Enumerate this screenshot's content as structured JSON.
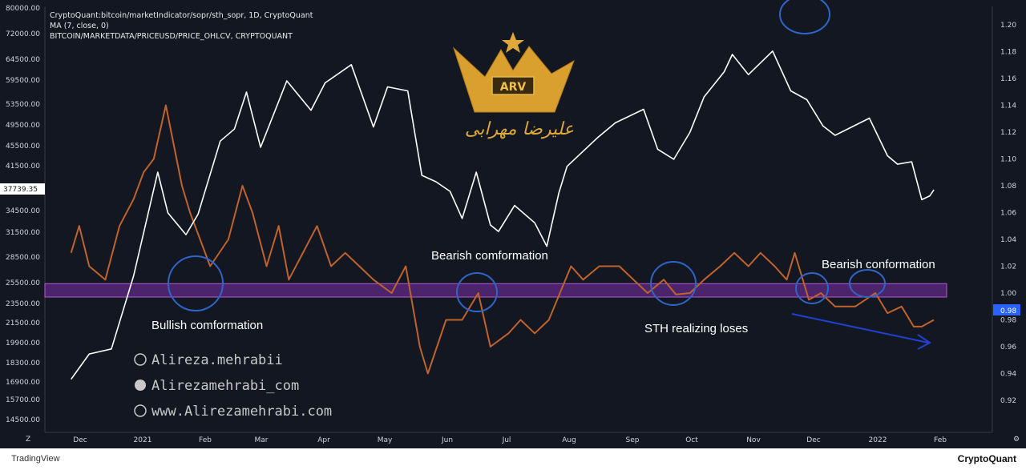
{
  "legend": {
    "line1": "CryptoQuant:bitcoin/marketIndicator/sopr/sth_sopr, 1D, CryptoQuant",
    "line2": "MA (7, close, 0)",
    "line3": "BITCOIN/MARKETDATA/PRICEUSD/PRICE_OHLCV, CRYPTOQUANT"
  },
  "colors": {
    "background": "#131722",
    "price_line": "#ffffff",
    "sopr_line": "#c0622b",
    "band_fill": "#7b2fa8",
    "circle": "#2f64c8",
    "arrow": "#2040d0",
    "price_tag": "#ffffff",
    "sopr_tag": "#2962ff"
  },
  "price_tag": "37739.35",
  "sopr_tag": "0.98",
  "annotations": {
    "bearish_1": "Bearish comformation",
    "bearish_2": "Bearish conformation",
    "bullish": "Bullish comformation",
    "sth": "STH realizing loses"
  },
  "watermark": {
    "instagram": "Alireza.mehrabii",
    "telegram": "Alirezamehrabi_com",
    "web": "www.Alirezamehrabi.com",
    "logo_text": "ARV",
    "logo_signature": "علیرضا مهرابی"
  },
  "footer": {
    "tradingview": "TradingView",
    "cryptoquant": "CryptoQuant"
  },
  "chart_data": {
    "type": "line",
    "title": "CryptoQuant:bitcoin/marketIndicator/sopr/sth_sopr, 1D, CryptoQuant",
    "x_ticks": [
      "Dec",
      "2021",
      "Feb",
      "Mar",
      "Apr",
      "May",
      "Jun",
      "Jul",
      "Aug",
      "Sep",
      "Oct",
      "Nov",
      "Dec",
      "2022",
      "Feb"
    ],
    "left_axis": {
      "label": "",
      "ticks": [
        "80000.00",
        "72000.00",
        "64500.00",
        "59500.00",
        "53500.00",
        "49500.00",
        "45500.00",
        "41500.00",
        "34500.00",
        "31500.00",
        "28500.00",
        "25500.00",
        "23500.00",
        "21500.00",
        "19900.00",
        "18300.00",
        "16900.00",
        "15700.00",
        "14500.00"
      ]
    },
    "right_axis": {
      "label": "",
      "ticks": [
        "1.20",
        "1.18",
        "1.16",
        "1.14",
        "1.12",
        "1.10",
        "1.08",
        "1.06",
        "1.04",
        "1.02",
        "1.00",
        "0.98",
        "0.96",
        "0.94",
        "0.92"
      ],
      "ylim": [
        0.91,
        1.21
      ]
    },
    "series": [
      {
        "name": "BITCOIN/MARKETDATA/PRICEUSD/PRICE_OHLCV, CRYPTOQUANT",
        "axis": "left",
        "x": [
          "2020-11-26",
          "2020-12-05",
          "2020-12-16",
          "2020-12-27",
          "2021-01-08",
          "2021-01-13",
          "2021-01-22",
          "2021-01-28",
          "2021-02-08",
          "2021-02-15",
          "2021-02-21",
          "2021-02-28",
          "2021-03-13",
          "2021-03-25",
          "2021-04-01",
          "2021-04-14",
          "2021-04-25",
          "2021-05-02",
          "2021-05-12",
          "2021-05-19",
          "2021-05-26",
          "2021-06-02",
          "2021-06-08",
          "2021-06-15",
          "2021-06-22",
          "2021-06-26",
          "2021-07-04",
          "2021-07-14",
          "2021-07-20",
          "2021-07-26",
          "2021-07-30",
          "2021-08-14",
          "2021-08-23",
          "2021-09-06",
          "2021-09-13",
          "2021-09-21",
          "2021-09-29",
          "2021-10-06",
          "2021-10-16",
          "2021-10-20",
          "2021-10-28",
          "2021-11-09",
          "2021-11-18",
          "2021-11-26",
          "2021-12-04",
          "2021-12-10",
          "2021-12-27",
          "2022-01-05",
          "2022-01-10",
          "2022-01-17",
          "2022-01-22",
          "2022-01-26",
          "2022-01-28"
        ],
        "y": [
          17100,
          19000,
          19400,
          26300,
          40500,
          34200,
          31200,
          34000,
          46400,
          48700,
          56500,
          45200,
          59300,
          52300,
          58800,
          63200,
          49100,
          57800,
          56800,
          40000,
          39000,
          37500,
          33400,
          40500,
          32500,
          31600,
          35300,
          32800,
          29800,
          37300,
          41400,
          47000,
          49900,
          52500,
          44800,
          42800,
          48100,
          55300,
          61500,
          65900,
          60800,
          66900,
          56800,
          54600,
          49300,
          47500,
          50800,
          43500,
          41800,
          42300,
          36200,
          36800,
          37739.35
        ]
      },
      {
        "name": "MA (7, close, 0)",
        "axis": "right",
        "x": [
          "2020-11-26",
          "2020-11-30",
          "2020-12-05",
          "2020-12-13",
          "2020-12-20",
          "2020-12-27",
          "2021-01-01",
          "2021-01-06",
          "2021-01-12",
          "2021-01-20",
          "2021-01-24",
          "2021-02-03",
          "2021-02-12",
          "2021-02-19",
          "2021-02-24",
          "2021-03-03",
          "2021-03-09",
          "2021-03-14",
          "2021-03-21",
          "2021-03-28",
          "2021-04-04",
          "2021-04-11",
          "2021-04-18",
          "2021-04-25",
          "2021-05-04",
          "2021-05-11",
          "2021-05-18",
          "2021-05-22",
          "2021-05-31",
          "2021-06-08",
          "2021-06-16",
          "2021-06-22",
          "2021-07-01",
          "2021-07-07",
          "2021-07-14",
          "2021-07-21",
          "2021-08-01",
          "2021-08-07",
          "2021-08-15",
          "2021-08-25",
          "2021-09-01",
          "2021-09-08",
          "2021-09-16",
          "2021-09-22",
          "2021-09-29",
          "2021-10-06",
          "2021-10-14",
          "2021-10-21",
          "2021-10-28",
          "2021-11-03",
          "2021-11-10",
          "2021-11-16",
          "2021-11-20",
          "2021-11-27",
          "2021-12-03",
          "2021-12-10",
          "2021-12-20",
          "2021-12-30",
          "2022-01-05",
          "2022-01-12",
          "2022-01-18",
          "2022-01-22",
          "2022-01-28"
        ],
        "y": [
          1.03,
          1.05,
          1.02,
          1.01,
          1.05,
          1.07,
          1.09,
          1.1,
          1.14,
          1.08,
          1.06,
          1.02,
          1.04,
          1.08,
          1.06,
          1.02,
          1.05,
          1.01,
          1.03,
          1.05,
          1.02,
          1.03,
          1.02,
          1.01,
          1.0,
          1.02,
          0.96,
          0.94,
          0.98,
          0.98,
          1.0,
          0.96,
          0.97,
          0.98,
          0.97,
          0.98,
          1.02,
          1.01,
          1.02,
          1.02,
          1.01,
          1.0,
          1.01,
          0.999,
          1.0,
          1.01,
          1.02,
          1.03,
          1.02,
          1.03,
          1.02,
          1.01,
          1.03,
          0.995,
          1.0,
          0.99,
          0.99,
          1.0,
          0.985,
          0.99,
          0.975,
          0.975,
          0.98
        ]
      }
    ],
    "band": {
      "axis": "right",
      "from": 0.997,
      "to": 1.007
    },
    "grid": false,
    "legend_position": "top-left"
  }
}
